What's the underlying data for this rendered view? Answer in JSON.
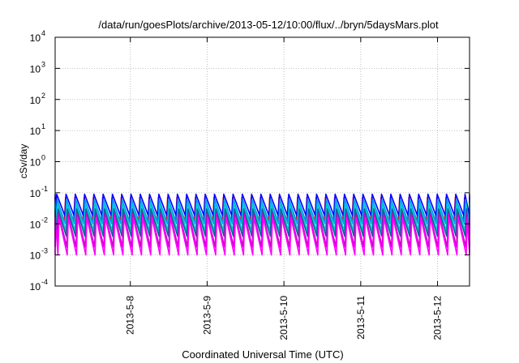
{
  "chart_data": {
    "type": "line",
    "title": "/data/run/goesPlots/archive/2013-05-12/10:00/flux/../bryn/5daysMars.plot",
    "xlabel": "Coordinated Universal Time (UTC)",
    "ylabel": "cSv/day",
    "xrange": [
      "2013-05-07T00:30",
      "2013-05-12T10:00"
    ],
    "x_tick_dates": [
      "2013-05-08T00:00",
      "2013-05-09T00:00",
      "2013-05-10T00:00",
      "2013-05-11T00:00",
      "2013-05-12T00:00"
    ],
    "x_tick_labels": [
      "2013-5-8",
      "2013-5-9",
      "2013-5-10",
      "2013-5-11",
      "2013-5-12"
    ],
    "yscale": "log",
    "ylim": [
      0.0001,
      10000
    ],
    "y_ticks": [
      {
        "base": "10",
        "exp": "-4"
      },
      {
        "base": "10",
        "exp": "-3"
      },
      {
        "base": "10",
        "exp": "-2"
      },
      {
        "base": "10",
        "exp": "-1"
      },
      {
        "base": "10",
        "exp": "0"
      },
      {
        "base": "10",
        "exp": "1"
      },
      {
        "base": "10",
        "exp": "2"
      },
      {
        "base": "10",
        "exp": "3"
      },
      {
        "base": "10",
        "exp": "4"
      }
    ],
    "grid": true,
    "sawtooth_period_hours": 2.9,
    "series": [
      {
        "color": "#ff0000",
        "peak": 0.07,
        "trough": 0.012
      },
      {
        "color": "#0000ff",
        "peak": 0.09,
        "trough": 0.018
      },
      {
        "color": "#0099ff",
        "peak": 0.06,
        "trough": 0.01
      },
      {
        "color": "#00cccc",
        "peak": 0.045,
        "trough": 0.006
      },
      {
        "color": "#006699",
        "peak": 0.03,
        "trough": 0.004
      },
      {
        "color": "#cc00cc",
        "peak": 0.022,
        "trough": 0.0018
      },
      {
        "color": "#ff00ff",
        "peak": 0.016,
        "trough": 0.001
      }
    ]
  }
}
